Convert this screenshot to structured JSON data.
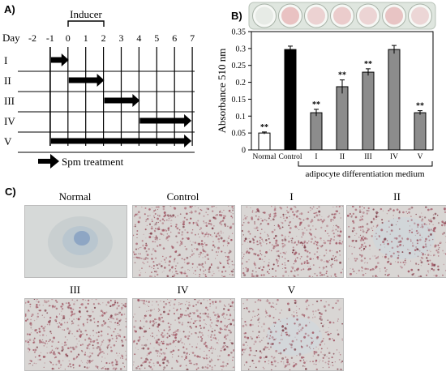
{
  "panel_a": {
    "letter": "A)",
    "inducer_label": "Inducer",
    "day_label": "Day",
    "days": [
      "-2",
      "-1",
      "0",
      "1",
      "2",
      "3",
      "4",
      "5",
      "6",
      "7"
    ],
    "groups": [
      {
        "label": "I",
        "start": "-1",
        "end": "0"
      },
      {
        "label": "II",
        "start": "0",
        "end": "2"
      },
      {
        "label": "III",
        "start": "2",
        "end": "4"
      },
      {
        "label": "IV",
        "start": "4",
        "end": "7"
      },
      {
        "label": "V",
        "start": "-1",
        "end": "7"
      }
    ],
    "legend_label": "Spm treatment"
  },
  "panel_b": {
    "letter": "B)"
  },
  "panel_c": {
    "letter": "C)",
    "photos": [
      {
        "label": "Normal",
        "style": "normal"
      },
      {
        "label": "Control",
        "style": "dense"
      },
      {
        "label": "I",
        "style": "dense"
      },
      {
        "label": "II",
        "style": "patchy"
      },
      {
        "label": "III",
        "style": "dense"
      },
      {
        "label": "IV",
        "style": "dense"
      },
      {
        "label": "V",
        "style": "sparse"
      }
    ]
  },
  "chart_data": {
    "type": "bar",
    "categories": [
      "Normal",
      "Control",
      "I",
      "II",
      "III",
      "IV",
      "V"
    ],
    "values": [
      0.05,
      0.297,
      0.11,
      0.187,
      0.23,
      0.297,
      0.11
    ],
    "errors": [
      0.003,
      0.01,
      0.01,
      0.02,
      0.01,
      0.012,
      0.006
    ],
    "significance": [
      "**",
      "",
      "**",
      "**",
      "**",
      "",
      "**"
    ],
    "bar_colors": [
      "#ffffff",
      "#000000",
      "#8c8c8c",
      "#8c8c8c",
      "#8c8c8c",
      "#8c8c8c",
      "#8c8c8c"
    ],
    "ylabel": "Absorbance 510 nm",
    "ylim": [
      0,
      0.35
    ],
    "yticks": [
      "0",
      "0.05",
      "0.1",
      "0.15",
      "0.2",
      "0.25",
      "0.3",
      "0.35"
    ],
    "group_label": "adipocyte differentiation medium",
    "well_colors": [
      "#e7ebe6",
      "#e9c2c2",
      "#ecd2d2",
      "#ebcccc",
      "#ecd4d4",
      "#e8c4c4",
      "#ecd6d6"
    ]
  }
}
